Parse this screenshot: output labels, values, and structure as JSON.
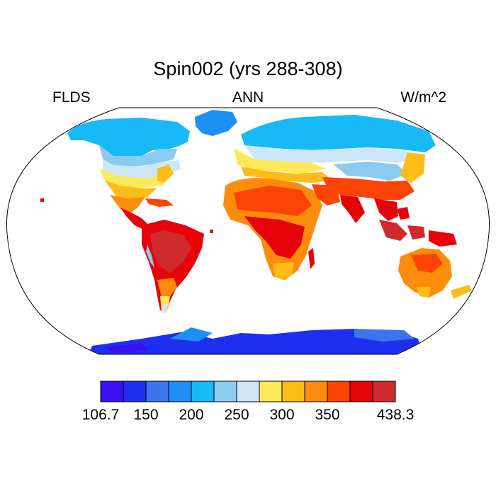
{
  "header": {
    "title": "Spin002 (yrs 288-308)",
    "left": "FLDS",
    "center": "ANN",
    "right": "W/m^2"
  },
  "colorbar": {
    "colors": [
      "#3b10f2",
      "#1f2ff0",
      "#3d74ee",
      "#1e8ff5",
      "#17b9f6",
      "#8bcbef",
      "#cde6f6",
      "#fde857",
      "#fdbc17",
      "#fd8c0c",
      "#fc4306",
      "#e5040a",
      "#cf2a2e"
    ],
    "labels": [
      "106.7",
      "150",
      "200",
      "250",
      "300",
      "350",
      "438.3"
    ],
    "label_boundaries": [
      0,
      2,
      4,
      6,
      8,
      10,
      13
    ]
  }
}
